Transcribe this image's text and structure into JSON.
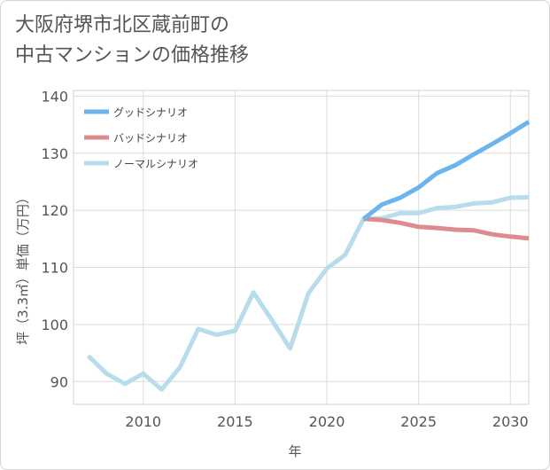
{
  "title_lines": [
    "大阪府堺市北区蔵前町の",
    "中古マンションの価格推移"
  ],
  "chart_data": {
    "type": "line",
    "xlabel": "年",
    "ylabel": "坪（3.3㎡）単価（万円）",
    "xlim": [
      2006.2,
      2031
    ],
    "ylim": [
      86,
      141
    ],
    "xticks": [
      2010,
      2015,
      2020,
      2025,
      2030
    ],
    "yticks": [
      90,
      100,
      110,
      120,
      130,
      140
    ],
    "grid": true,
    "legend_position": "top-left",
    "series": [
      {
        "name": "グッドシナリオ",
        "color": "#6cb4ec",
        "x": [
          2022,
          2023,
          2024,
          2025,
          2026,
          2027,
          2028,
          2029,
          2030,
          2031
        ],
        "values": [
          118.5,
          121,
          122.2,
          124,
          126.5,
          127.9,
          129.8,
          131.6,
          133.5,
          135.5
        ]
      },
      {
        "name": "バッドシナリオ",
        "color": "#dc8c91",
        "x": [
          2022,
          2023,
          2024,
          2025,
          2026,
          2027,
          2028,
          2029,
          2030,
          2031
        ],
        "values": [
          118.5,
          118.3,
          117.8,
          117.1,
          116.9,
          116.6,
          116.5,
          115.8,
          115.4,
          115.1
        ]
      },
      {
        "name": "ノーマルシナリオ",
        "color": "#b7dcec",
        "x": [
          2007,
          2008,
          2009,
          2010,
          2011,
          2012,
          2013,
          2014,
          2015,
          2016,
          2017,
          2018,
          2019,
          2020,
          2021,
          2022,
          2023,
          2024,
          2025,
          2026,
          2027,
          2028,
          2029,
          2030,
          2031
        ],
        "values": [
          94.5,
          91.4,
          89.6,
          91.4,
          88.6,
          92.5,
          99.2,
          98.2,
          98.9,
          105.6,
          100.8,
          95.8,
          105.5,
          109.8,
          112.2,
          118.5,
          118.6,
          119.5,
          119.5,
          120.4,
          120.6,
          121.2,
          121.4,
          122.2,
          122.3
        ]
      }
    ]
  }
}
